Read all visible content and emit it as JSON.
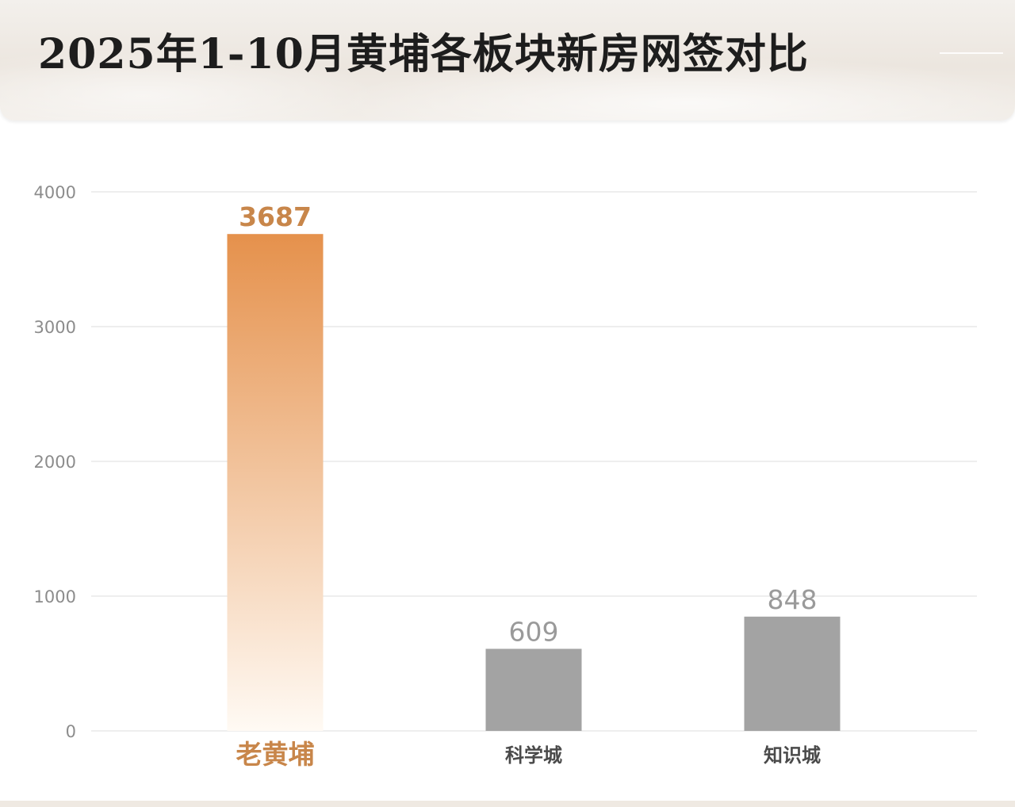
{
  "header": {
    "title": "2025年1-10月黄埔各板块新房网签对比"
  },
  "colors": {
    "highlight_top": "#e5914c",
    "highlight_bottom": "#fffaf4",
    "highlight_text": "#c8864a",
    "bar_gray": "#a3a3a3",
    "value_gray": "#9a9a9a",
    "category_gray": "#4a4a4a",
    "grid": "#e3e3e3",
    "tick": "#8c8c8c"
  },
  "chart_data": {
    "type": "bar",
    "categories": [
      "老黄埔",
      "科学城",
      "知识城"
    ],
    "values": [
      3687,
      609,
      848
    ],
    "data_labels": [
      "3687",
      "609",
      "848"
    ],
    "highlighted_category": "老黄埔",
    "ylim": [
      0,
      4000
    ],
    "yticks": [
      0,
      1000,
      2000,
      3000,
      4000
    ],
    "ytick_labels": [
      "0",
      "1000",
      "2000",
      "3000",
      "4000"
    ],
    "grid": true,
    "xlabel": "",
    "ylabel": ""
  }
}
